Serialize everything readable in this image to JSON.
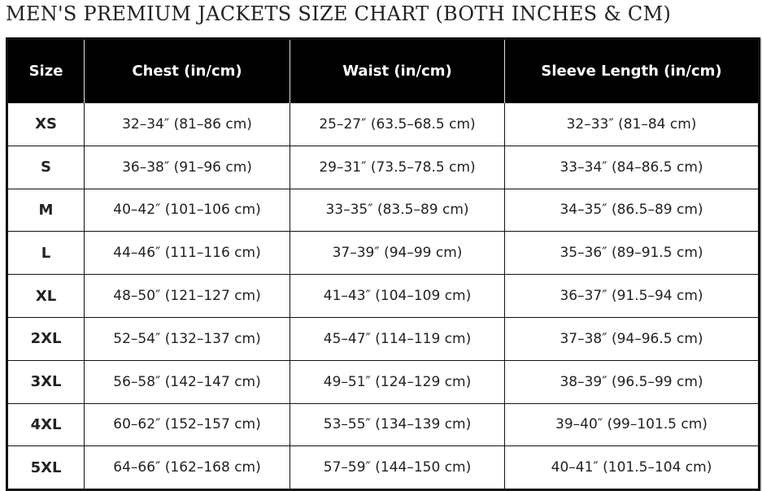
{
  "title": "MEN'S PREMIUM JACKETS SIZE CHART (BOTH INCHES & CM)",
  "headers": [
    "Size",
    "Chest (in/cm)",
    "Waist (in/cm)",
    "Sleeve Length (in/cm)"
  ],
  "rows": [
    [
      "XS",
      "32–34″ (81–86 cm)",
      "25–27″ (63.5–68.5 cm)",
      "32–33″ (81–84 cm)"
    ],
    [
      "S",
      "36–38″ (91–96 cm)",
      "29–31″ (73.5–78.5 cm)",
      "33–34″ (84–86.5 cm)"
    ],
    [
      "M",
      "40–42″ (101–106 cm)",
      "33–35″ (83.5–89 cm)",
      "34–35″ (86.5–89 cm)"
    ],
    [
      "L",
      "44–46″ (111–116 cm)",
      "37–39″ (94–99 cm)",
      "35–36″ (89–91.5 cm)"
    ],
    [
      "XL",
      "48–50″ (121–127 cm)",
      "41–43″ (104–109 cm)",
      "36–37″ (91.5–94 cm)"
    ],
    [
      "2XL",
      "52–54″ (132–137 cm)",
      "45–47″ (114–119 cm)",
      "37–38″ (94–96.5 cm)"
    ],
    [
      "3XL",
      "56–58″ (142–147 cm)",
      "49–51″ (124–129 cm)",
      "38–39″ (96.5–99 cm)"
    ],
    [
      "4XL",
      "60–62″ (152–157 cm)",
      "53–55″ (134–139 cm)",
      "39–40″ (99–101.5 cm)"
    ],
    [
      "5XL",
      "64–66″ (162–168 cm)",
      "57–59″ (144–150 cm)",
      "40–41″ (101.5–104 cm)"
    ]
  ]
}
